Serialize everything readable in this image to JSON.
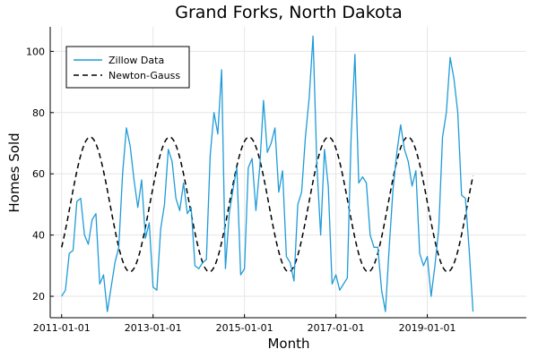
{
  "chart_data": {
    "type": "line",
    "title": "Grand Forks, North Dakota",
    "xlabel": "Month",
    "ylabel": "Homes Sold",
    "x_start": "2011-01",
    "x_tick_labels": [
      "2011-01-01",
      "2013-01-01",
      "2015-01-01",
      "2017-01-01",
      "2019-01-01"
    ],
    "y_ticks": [
      20,
      40,
      60,
      80,
      100
    ],
    "xlim": [
      "2010-10",
      "2021-03"
    ],
    "ylim": [
      13,
      108
    ],
    "grid": true,
    "legend_position": "top-left",
    "series": [
      {
        "name": "Zillow Data",
        "style": "solid",
        "color": "#1f9bd7",
        "values": [
          20,
          22,
          34,
          35,
          51,
          52,
          40,
          37,
          45,
          47,
          24,
          27,
          15,
          23,
          31,
          36,
          60,
          75,
          69,
          58,
          49,
          58,
          39,
          44,
          23,
          22,
          42,
          50,
          68,
          64,
          52,
          48,
          57,
          47,
          49,
          30,
          29,
          31,
          32,
          66,
          80,
          73,
          94,
          29,
          47,
          55,
          62,
          27,
          29,
          62,
          65,
          48,
          62,
          84,
          67,
          70,
          75,
          54,
          61,
          33,
          31,
          25,
          50,
          54,
          72,
          85,
          105,
          63,
          40,
          68,
          56,
          24,
          27,
          22,
          24,
          26,
          72,
          99,
          57,
          59,
          57,
          40,
          36,
          36,
          22,
          15,
          36,
          55,
          67,
          76,
          68,
          64,
          56,
          61,
          34,
          30,
          33,
          20,
          30,
          42,
          72,
          80,
          98,
          91,
          80,
          53,
          52,
          35,
          15
        ]
      },
      {
        "name": "Newton-Gauss",
        "style": "dashed",
        "color": "#000000",
        "mean": 50,
        "amplitude": 22,
        "period_months": 20.85,
        "peak_month_index": 7.5
      }
    ]
  }
}
